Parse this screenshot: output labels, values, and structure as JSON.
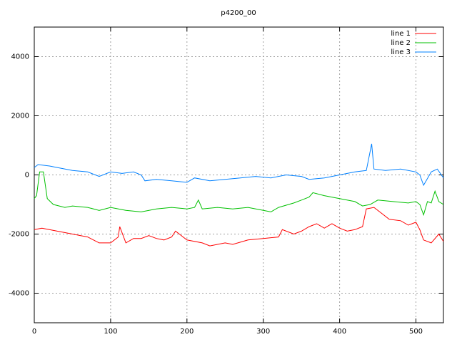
{
  "chart_data": {
    "type": "line",
    "title": "p4200_00",
    "xlim": [
      0,
      536
    ],
    "ylim": [
      -5000,
      5000
    ],
    "xticks": [
      0,
      100,
      200,
      300,
      400,
      500
    ],
    "yticks": [
      -4000,
      -2000,
      0,
      2000,
      4000
    ],
    "grid": true,
    "legend": "top-right",
    "series": [
      {
        "name": "line 1",
        "color": "#ff0000",
        "x": [
          0,
          10,
          30,
          50,
          70,
          85,
          100,
          110,
          112,
          120,
          130,
          140,
          150,
          160,
          170,
          180,
          185,
          200,
          220,
          230,
          250,
          260,
          280,
          300,
          320,
          325,
          340,
          350,
          360,
          370,
          380,
          390,
          400,
          410,
          420,
          430,
          435,
          445,
          455,
          465,
          480,
          490,
          500,
          505,
          510,
          520,
          530,
          536
        ],
        "values": [
          -1850,
          -1800,
          -1900,
          -2000,
          -2100,
          -2300,
          -2300,
          -2100,
          -1750,
          -2300,
          -2150,
          -2150,
          -2050,
          -2150,
          -2200,
          -2100,
          -1900,
          -2200,
          -2300,
          -2400,
          -2300,
          -2350,
          -2200,
          -2150,
          -2100,
          -1850,
          -2000,
          -1900,
          -1750,
          -1650,
          -1800,
          -1650,
          -1800,
          -1900,
          -1850,
          -1750,
          -1150,
          -1100,
          -1300,
          -1500,
          -1550,
          -1700,
          -1600,
          -1850,
          -2200,
          -2300,
          -2000,
          -2250
        ]
      },
      {
        "name": "line 2",
        "color": "#00c000",
        "x": [
          0,
          3,
          7,
          12,
          17,
          25,
          40,
          50,
          70,
          85,
          100,
          120,
          140,
          160,
          180,
          200,
          210,
          215,
          220,
          240,
          260,
          280,
          300,
          310,
          320,
          340,
          350,
          360,
          365,
          380,
          400,
          420,
          430,
          440,
          450,
          470,
          490,
          500,
          505,
          510,
          515,
          520,
          525,
          530,
          536
        ],
        "values": [
          -800,
          -700,
          100,
          100,
          -800,
          -1000,
          -1100,
          -1050,
          -1100,
          -1200,
          -1100,
          -1200,
          -1250,
          -1150,
          -1100,
          -1150,
          -1100,
          -850,
          -1150,
          -1100,
          -1150,
          -1100,
          -1200,
          -1250,
          -1100,
          -950,
          -850,
          -750,
          -600,
          -700,
          -800,
          -900,
          -1050,
          -1000,
          -850,
          -900,
          -950,
          -900,
          -1000,
          -1350,
          -900,
          -950,
          -550,
          -900,
          -1000
        ]
      },
      {
        "name": "line 3",
        "color": "#0080ff",
        "x": [
          0,
          5,
          20,
          30,
          50,
          70,
          85,
          100,
          115,
          130,
          140,
          145,
          160,
          180,
          200,
          210,
          230,
          250,
          270,
          290,
          310,
          330,
          350,
          360,
          380,
          400,
          420,
          435,
          442,
          445,
          460,
          480,
          500,
          505,
          510,
          520,
          528,
          536
        ],
        "values": [
          250,
          350,
          300,
          250,
          150,
          100,
          -50,
          100,
          50,
          100,
          0,
          -200,
          -150,
          -200,
          -250,
          -100,
          -200,
          -150,
          -100,
          -50,
          -100,
          0,
          -50,
          -150,
          -100,
          0,
          100,
          150,
          1050,
          200,
          150,
          200,
          100,
          0,
          -350,
          100,
          200,
          -100
        ]
      }
    ]
  }
}
